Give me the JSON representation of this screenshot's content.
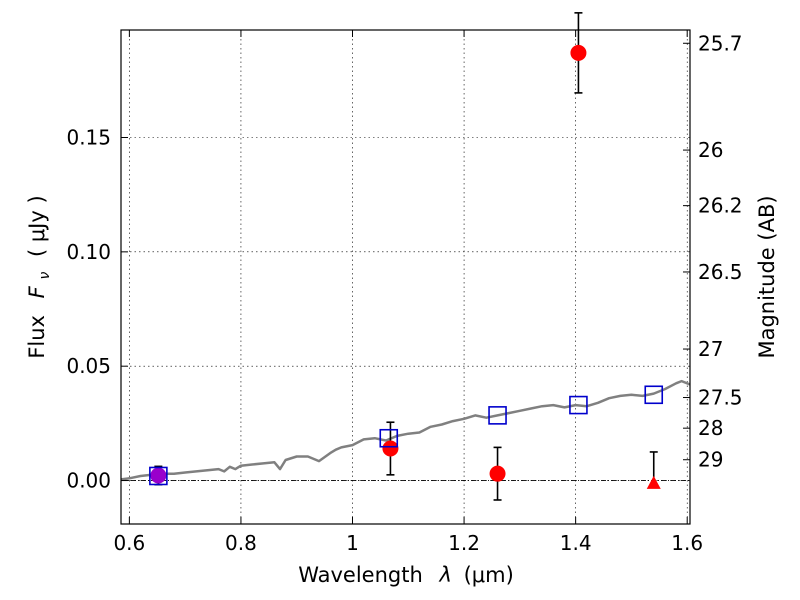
{
  "chart_data": {
    "type": "scatter",
    "xlabel": "Wavelength",
    "xlabel_math": "λ",
    "xlabel_unit": "(μm)",
    "ylabel": "Flux",
    "ylabel_math": "F",
    "ylabel_sub": "ν",
    "ylabel_unit": "( μJy )",
    "y2label": "Magnitude (AB)",
    "xlim": [
      0.585,
      1.605
    ],
    "ylim": [
      -0.019,
      0.197
    ],
    "grid": true,
    "xticks": [
      0.6,
      0.8,
      1.0,
      1.2,
      1.4,
      1.6
    ],
    "xtick_labels": [
      "0.6",
      "0.8",
      "1",
      "1.2",
      "1.4",
      "1.6"
    ],
    "yticks": [
      0.0,
      0.05,
      0.1,
      0.15
    ],
    "ytick_labels": [
      "0.00",
      "0.05",
      "0.10",
      "0.15"
    ],
    "y2_ticks": [
      {
        "label": "25.7",
        "flux": 0.1912
      },
      {
        "label": "26",
        "flux": 0.1445
      },
      {
        "label": "26.2",
        "flux": 0.1202
      },
      {
        "label": "26.5",
        "flux": 0.0912
      },
      {
        "label": "27",
        "flux": 0.0575
      },
      {
        "label": "27.5",
        "flux": 0.0363
      },
      {
        "label": "28",
        "flux": 0.0229
      },
      {
        "label": "29",
        "flux": 0.0091
      }
    ],
    "zero_line": 0.0,
    "series": [
      {
        "kind": "model-spectrum",
        "color": "#808080",
        "x": [
          0.585,
          0.6,
          0.62,
          0.64,
          0.66,
          0.68,
          0.7,
          0.72,
          0.74,
          0.76,
          0.77,
          0.78,
          0.79,
          0.8,
          0.82,
          0.84,
          0.86,
          0.87,
          0.88,
          0.9,
          0.92,
          0.94,
          0.96,
          0.97,
          0.98,
          1.0,
          1.02,
          1.04,
          1.06,
          1.07,
          1.08,
          1.1,
          1.12,
          1.14,
          1.16,
          1.18,
          1.2,
          1.22,
          1.24,
          1.26,
          1.28,
          1.3,
          1.32,
          1.34,
          1.36,
          1.38,
          1.4,
          1.42,
          1.44,
          1.46,
          1.48,
          1.5,
          1.52,
          1.54,
          1.56,
          1.58,
          1.59,
          1.605
        ],
        "values": [
          0.0005,
          0.001,
          0.002,
          0.0025,
          0.003,
          0.003,
          0.0035,
          0.004,
          0.0045,
          0.005,
          0.004,
          0.006,
          0.005,
          0.0065,
          0.007,
          0.0075,
          0.008,
          0.005,
          0.009,
          0.0105,
          0.0105,
          0.0085,
          0.012,
          0.0135,
          0.0145,
          0.0155,
          0.018,
          0.0185,
          0.0175,
          0.0185,
          0.0195,
          0.0205,
          0.021,
          0.0235,
          0.0245,
          0.026,
          0.027,
          0.0285,
          0.0275,
          0.0285,
          0.0295,
          0.0305,
          0.0315,
          0.0325,
          0.033,
          0.032,
          0.033,
          0.0325,
          0.034,
          0.036,
          0.037,
          0.0375,
          0.037,
          0.038,
          0.04,
          0.0425,
          0.0435,
          0.042
        ]
      },
      {
        "kind": "model-bandpass",
        "marker": "open-square",
        "color": "#0000cc",
        "x": [
          0.652,
          1.065,
          1.26,
          1.405,
          1.54
        ],
        "values": [
          0.002,
          0.0185,
          0.0285,
          0.033,
          0.0375
        ]
      },
      {
        "kind": "observed",
        "marker": "filled-circle",
        "color": "#ff0000",
        "x": [
          1.068,
          1.26,
          1.405
        ],
        "values": [
          0.014,
          0.003,
          0.187
        ],
        "err": [
          0.0115,
          0.0115,
          0.0175
        ]
      },
      {
        "kind": "observed",
        "marker": "filled-circle",
        "color": "#9900cc",
        "x": [
          0.652
        ],
        "values": [
          0.0022
        ],
        "err": [
          0.004
        ]
      },
      {
        "kind": "upper-limit",
        "marker": "filled-triangle",
        "color": "#ff0000",
        "x": [
          1.54
        ],
        "values": [
          -0.001
        ],
        "err_top": [
          0.0125
        ]
      }
    ]
  }
}
